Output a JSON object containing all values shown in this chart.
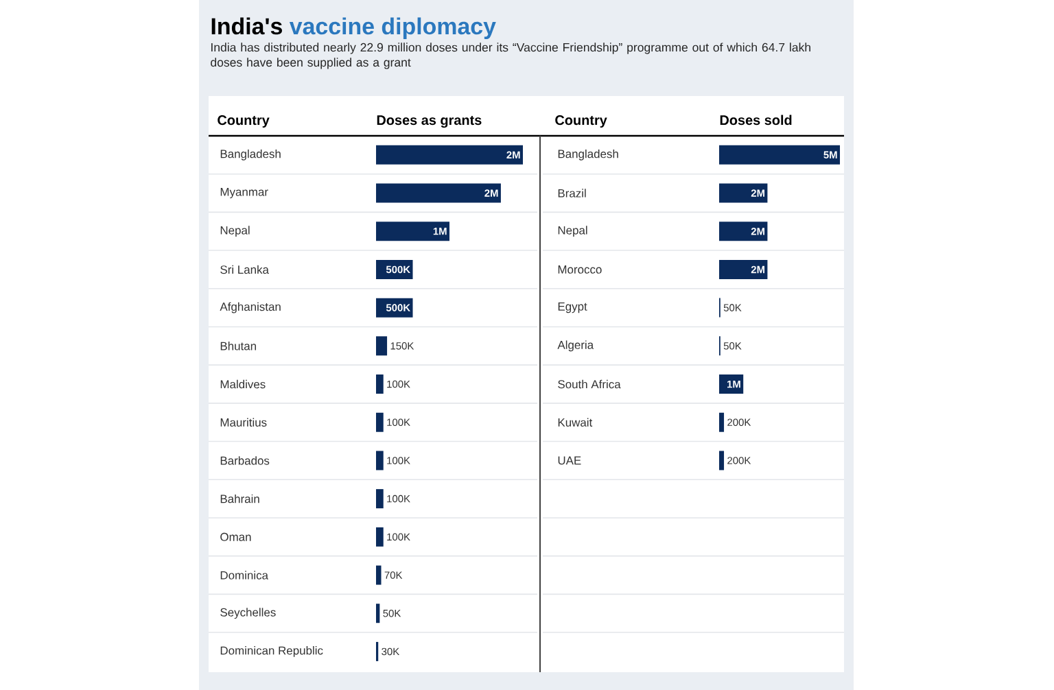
{
  "chart_data": [
    {
      "type": "bar",
      "orientation": "horizontal",
      "title": "India's vaccine diplomacy",
      "subtitle": "India has distributed nearly 22.9 million doses under its “Vaccine Friendship” programme out of which 64.7 lakh doses have been supplied as a grant",
      "ylabel": "Country",
      "xlabel": "Doses as grants",
      "tick_labels": "y",
      "color": "#0b2b5c",
      "categories": [
        "Bangladesh",
        "Myanmar",
        "Nepal",
        "Sri Lanka",
        "Afghanistan",
        "Bhutan",
        "Maldives",
        "Mauritius",
        "Barbados",
        "Bahrain",
        "Oman",
        "Dominica",
        "Seychelles",
        "Dominican Republic"
      ],
      "values": [
        2000000,
        1700000,
        1000000,
        500000,
        500000,
        150000,
        100000,
        100000,
        100000,
        100000,
        100000,
        70000,
        50000,
        30000
      ],
      "value_labels": [
        "2M",
        "2M",
        "1M",
        "500K",
        "500K",
        "150K",
        "100K",
        "100K",
        "100K",
        "100K",
        "100K",
        "70K",
        "50K",
        "30K"
      ]
    },
    {
      "type": "bar",
      "orientation": "horizontal",
      "ylabel": "Country",
      "xlabel": "Doses sold",
      "tick_labels": "y",
      "color": "#0b2b5c",
      "categories": [
        "Bangladesh",
        "Brazil",
        "Nepal",
        "Morocco",
        "Egypt",
        "Algeria",
        "South Africa",
        "Kuwait",
        "UAE"
      ],
      "values": [
        5000000,
        2000000,
        2000000,
        2000000,
        50000,
        50000,
        1000000,
        200000,
        200000
      ],
      "value_labels": [
        "5M",
        "2M",
        "2M",
        "2M",
        "50K",
        "50K",
        "1M",
        "200K",
        "200K"
      ]
    }
  ]
}
